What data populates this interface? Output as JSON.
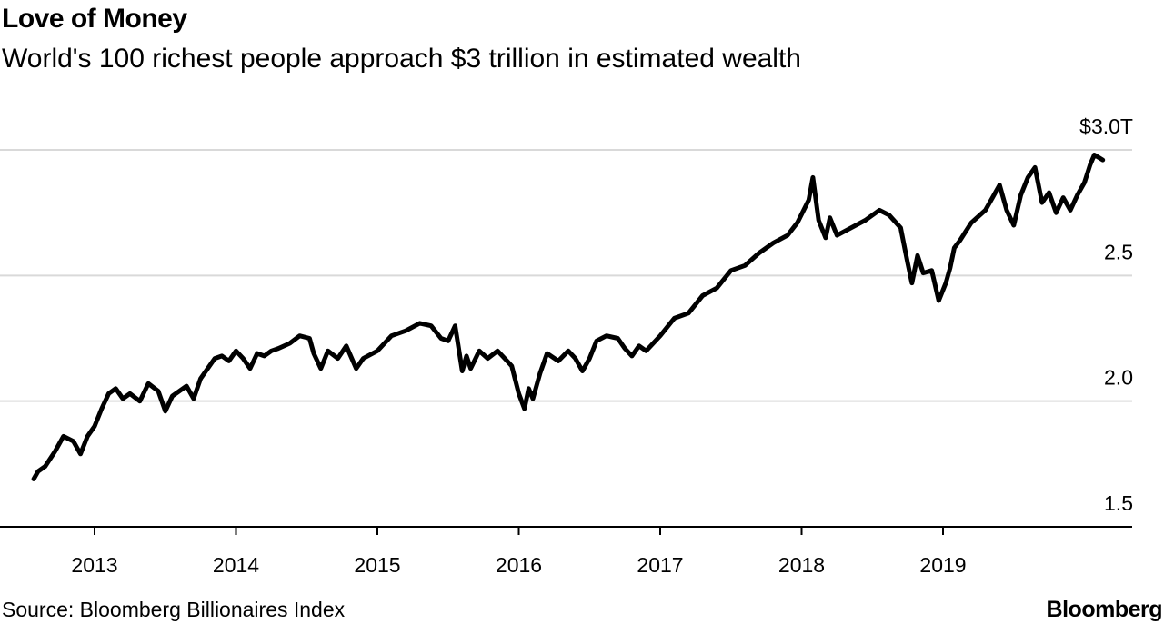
{
  "header": {
    "title": "Love of Money",
    "subtitle": "World's 100 richest people approach $3 trillion in estimated wealth"
  },
  "footer": {
    "source": "Source: Bloomberg Billionaires Index",
    "brand": "Bloomberg"
  },
  "colors": {
    "line": "#000000",
    "grid": "#d9d9d9",
    "axis": "#000000",
    "background": "#ffffff"
  },
  "chart_data": {
    "type": "line",
    "title": "Love of Money",
    "subtitle": "World's 100 richest people approach $3 trillion in estimated wealth",
    "xlabel": "",
    "ylabel": "",
    "y_unit": "trillions of US dollars",
    "y_axis_position": "right",
    "xlim": [
      2012.55,
      2020.4
    ],
    "ylim": [
      1.5,
      3.0
    ],
    "grid": true,
    "legend": "none",
    "y_ticks": [
      {
        "value": 3.0,
        "label": "$3.0T"
      },
      {
        "value": 2.5,
        "label": "2.5"
      },
      {
        "value": 2.0,
        "label": "2.0"
      },
      {
        "value": 1.5,
        "label": "1.5"
      }
    ],
    "x_ticks": [
      {
        "value": 2013,
        "label": "2013"
      },
      {
        "value": 2014,
        "label": "2014"
      },
      {
        "value": 2015,
        "label": "2015"
      },
      {
        "value": 2016,
        "label": "2016"
      },
      {
        "value": 2017,
        "label": "2017"
      },
      {
        "value": 2018,
        "label": "2018"
      },
      {
        "value": 2019,
        "label": "2019"
      }
    ],
    "series": [
      {
        "x": [
          2012.57,
          2012.6,
          2012.65,
          2012.72,
          2012.78,
          2012.85,
          2012.9,
          2012.95,
          2013.0,
          2013.05,
          2013.1,
          2013.15,
          2013.2,
          2013.25,
          2013.32,
          2013.38,
          2013.45,
          2013.5,
          2013.55,
          2013.6,
          2013.65,
          2013.7,
          2013.75,
          2013.8,
          2013.85,
          2013.9,
          2013.95,
          2014.0,
          2014.05,
          2014.1,
          2014.15,
          2014.2,
          2014.25,
          2014.3,
          2014.38,
          2014.45,
          2014.52,
          2014.55,
          2014.6,
          2014.65,
          2014.72,
          2014.78,
          2014.85,
          2014.9,
          2015.0,
          2015.1,
          2015.2,
          2015.3,
          2015.38,
          2015.45,
          2015.5,
          2015.55,
          2015.6,
          2015.63,
          2015.66,
          2015.72,
          2015.78,
          2015.85,
          2015.9,
          2015.95,
          2016.0,
          2016.04,
          2016.07,
          2016.1,
          2016.15,
          2016.2,
          2016.28,
          2016.35,
          2016.4,
          2016.45,
          2016.5,
          2016.55,
          2016.62,
          2016.7,
          2016.75,
          2016.8,
          2016.85,
          2016.9,
          2017.0,
          2017.1,
          2017.2,
          2017.3,
          2017.4,
          2017.5,
          2017.6,
          2017.7,
          2017.8,
          2017.9,
          2017.97,
          2018.05,
          2018.08,
          2018.12,
          2018.17,
          2018.2,
          2018.25,
          2018.35,
          2018.45,
          2018.55,
          2018.62,
          2018.7,
          2018.75,
          2018.78,
          2018.82,
          2018.86,
          2018.92,
          2018.97,
          2019.02,
          2019.05,
          2019.08,
          2019.12,
          2019.2,
          2019.3,
          2019.35,
          2019.4,
          2019.45,
          2019.5,
          2019.55,
          2019.6,
          2019.65,
          2019.7,
          2019.75,
          2019.8,
          2019.85,
          2019.9,
          2019.95,
          2020.0,
          2020.04,
          2020.07,
          2020.1,
          2020.13
        ],
        "values": [
          1.69,
          1.72,
          1.74,
          1.8,
          1.86,
          1.84,
          1.79,
          1.86,
          1.9,
          1.97,
          2.03,
          2.05,
          2.01,
          2.03,
          2.0,
          2.07,
          2.04,
          1.96,
          2.02,
          2.04,
          2.06,
          2.01,
          2.09,
          2.13,
          2.17,
          2.18,
          2.16,
          2.2,
          2.17,
          2.13,
          2.19,
          2.18,
          2.2,
          2.21,
          2.23,
          2.26,
          2.25,
          2.19,
          2.13,
          2.2,
          2.17,
          2.22,
          2.13,
          2.17,
          2.2,
          2.26,
          2.28,
          2.31,
          2.3,
          2.25,
          2.24,
          2.3,
          2.12,
          2.18,
          2.13,
          2.2,
          2.17,
          2.2,
          2.17,
          2.14,
          2.03,
          1.97,
          2.05,
          2.01,
          2.11,
          2.19,
          2.16,
          2.2,
          2.17,
          2.12,
          2.17,
          2.24,
          2.26,
          2.25,
          2.21,
          2.18,
          2.22,
          2.2,
          2.26,
          2.33,
          2.35,
          2.42,
          2.45,
          2.52,
          2.54,
          2.59,
          2.63,
          2.66,
          2.71,
          2.8,
          2.89,
          2.72,
          2.65,
          2.73,
          2.66,
          2.69,
          2.72,
          2.76,
          2.74,
          2.69,
          2.55,
          2.47,
          2.58,
          2.51,
          2.52,
          2.4,
          2.47,
          2.53,
          2.61,
          2.64,
          2.71,
          2.76,
          2.81,
          2.86,
          2.76,
          2.7,
          2.82,
          2.89,
          2.93,
          2.79,
          2.83,
          2.75,
          2.81,
          2.76,
          2.82,
          2.87,
          2.94,
          2.98,
          2.97,
          2.96
        ]
      }
    ]
  }
}
